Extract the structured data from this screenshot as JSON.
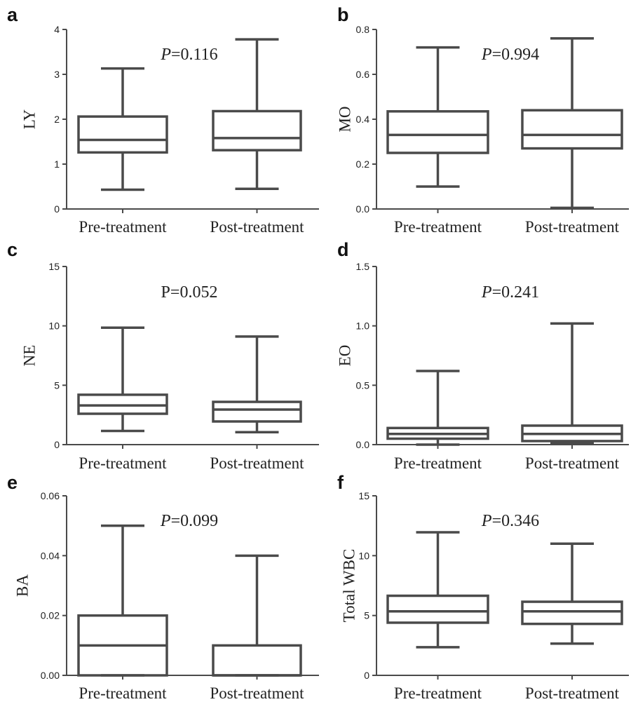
{
  "chart_data": [
    {
      "type": "box",
      "panel_letter": "a",
      "ylabel": "LY",
      "annotation": {
        "italic": true,
        "p_label": "P",
        "p_rest": "=0.116"
      },
      "ylim": [
        0,
        4
      ],
      "yticks": [
        "0",
        "1",
        "2",
        "3",
        "4"
      ],
      "yticks_val": [
        0,
        1,
        2,
        3,
        4
      ],
      "categories": [
        "Pre-treatment",
        "Post-treatment"
      ],
      "boxes": [
        {
          "min": 0.43,
          "q1": 1.26,
          "median": 1.54,
          "q3": 2.06,
          "max": 3.13
        },
        {
          "min": 0.45,
          "q1": 1.31,
          "median": 1.58,
          "q3": 2.18,
          "max": 3.78
        }
      ]
    },
    {
      "type": "box",
      "panel_letter": "b",
      "ylabel": "MO",
      "annotation": {
        "italic": true,
        "p_label": "P",
        "p_rest": "=0.994"
      },
      "ylim": [
        0,
        0.8
      ],
      "yticks": [
        "0.0",
        "0.2",
        "0.4",
        "0.6",
        "0.8"
      ],
      "yticks_val": [
        0,
        0.2,
        0.4,
        0.6,
        0.8
      ],
      "categories": [
        "Pre-treatment",
        "Post-treatment"
      ],
      "boxes": [
        {
          "min": 0.1,
          "q1": 0.25,
          "median": 0.33,
          "q3": 0.435,
          "max": 0.72
        },
        {
          "min": 0.005,
          "q1": 0.27,
          "median": 0.33,
          "q3": 0.44,
          "max": 0.76
        }
      ]
    },
    {
      "type": "box",
      "panel_letter": "c",
      "ylabel": "NE",
      "annotation": {
        "italic": false,
        "p_label": "P",
        "p_rest": "=0.052"
      },
      "ylim": [
        0,
        15
      ],
      "yticks": [
        "0",
        "5",
        "10",
        "15"
      ],
      "yticks_val": [
        0,
        5,
        10,
        15
      ],
      "categories": [
        "Pre-treatment",
        "Post-treatment"
      ],
      "boxes": [
        {
          "min": 1.15,
          "q1": 2.6,
          "median": 3.3,
          "q3": 4.2,
          "max": 9.85
        },
        {
          "min": 1.05,
          "q1": 1.95,
          "median": 2.95,
          "q3": 3.6,
          "max": 9.1
        }
      ]
    },
    {
      "type": "box",
      "panel_letter": "d",
      "ylabel": "EO",
      "annotation": {
        "italic": true,
        "p_label": "P",
        "p_rest": "=0.241"
      },
      "ylim": [
        0,
        1.5
      ],
      "yticks": [
        "0.0",
        "0.5",
        "1.0",
        "1.5"
      ],
      "yticks_val": [
        0,
        0.5,
        1.0,
        1.5
      ],
      "categories": [
        "Pre-treatment",
        "Post-treatment"
      ],
      "boxes": [
        {
          "min": 0.0,
          "q1": 0.05,
          "median": 0.09,
          "q3": 0.14,
          "max": 0.62
        },
        {
          "min": 0.01,
          "q1": 0.03,
          "median": 0.09,
          "q3": 0.16,
          "max": 1.02
        }
      ]
    },
    {
      "type": "box",
      "panel_letter": "e",
      "ylabel": "BA",
      "annotation": {
        "italic": true,
        "p_label": "P",
        "p_rest": "=0.099"
      },
      "ylim": [
        0,
        0.06
      ],
      "yticks": [
        "0.00",
        "0.02",
        "0.04",
        "0.06"
      ],
      "yticks_val": [
        0,
        0.02,
        0.04,
        0.06
      ],
      "categories": [
        "Pre-treatment",
        "Post-treatment"
      ],
      "boxes": [
        {
          "min": 0.0,
          "q1": 0.0,
          "median": 0.01,
          "q3": 0.02,
          "max": 0.05
        },
        {
          "min": 0.0,
          "q1": 0.0,
          "median": 0.0,
          "q3": 0.01,
          "max": 0.04
        }
      ]
    },
    {
      "type": "box",
      "panel_letter": "f",
      "ylabel": "Total WBC",
      "annotation": {
        "italic": true,
        "p_label": "P",
        "p_rest": "=0.346"
      },
      "ylim": [
        0,
        15
      ],
      "yticks": [
        "0",
        "5",
        "10",
        "15"
      ],
      "yticks_val": [
        0,
        5,
        10,
        15
      ],
      "categories": [
        "Pre-treatment",
        "Post-treatment"
      ],
      "boxes": [
        {
          "min": 2.35,
          "q1": 4.4,
          "median": 5.35,
          "q3": 6.65,
          "max": 11.95
        },
        {
          "min": 2.65,
          "q1": 4.3,
          "median": 5.35,
          "q3": 6.15,
          "max": 11.0
        }
      ]
    }
  ]
}
